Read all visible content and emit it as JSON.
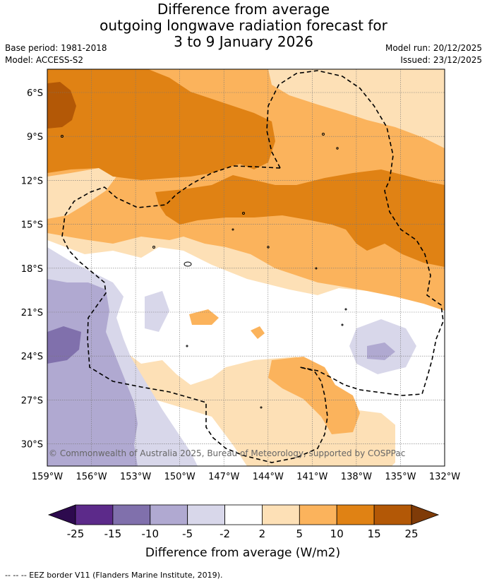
{
  "header": {
    "title_line1": "Difference from average",
    "title_line2": "outgoing longwave radiation forecast for",
    "title_line3": "3 to 9 January 2026",
    "base_period": "Base period: 1981-2018",
    "model": "Model: ACCESS-S2",
    "model_run": "Model run: 20/12/2025",
    "issued": "Issued: 23/12/2025"
  },
  "map": {
    "copyright": "© Commonwealth of Australia 2025, Bureau of Meteorology, supported by COSPPac",
    "lon_labels": [
      "159°W",
      "156°W",
      "153°W",
      "150°W",
      "147°W",
      "144°W",
      "141°W",
      "138°W",
      "135°W",
      "132°W"
    ],
    "lat_labels": [
      "6°S",
      "9°S",
      "12°S",
      "15°S",
      "18°S",
      "21°S",
      "24°S",
      "27°S",
      "30°S"
    ],
    "gridlines": true
  },
  "colorbar": {
    "title": "Difference from average (W/m2)",
    "tick_labels": [
      "-25",
      "-15",
      "-10",
      "-5",
      "-2",
      "2",
      "5",
      "10",
      "15",
      "25"
    ],
    "colors": {
      "below": "#2d0a4e",
      "c_m25_m15": "#5c2a8a",
      "c_m15_m10": "#8070ac",
      "c_m10_m5": "#b0a9d1",
      "c_m5_m2": "#d8d7ea",
      "c_m2_2": "#ffffff",
      "c_2_5": "#fde0b6",
      "c_5_10": "#fbb35c",
      "c_10_15": "#e08214",
      "c_15_25": "#b35806",
      "above": "#7f3b08"
    }
  },
  "footnote": "--  --  -- EEZ border V11 (Flanders Marine Institute, 2019)."
}
